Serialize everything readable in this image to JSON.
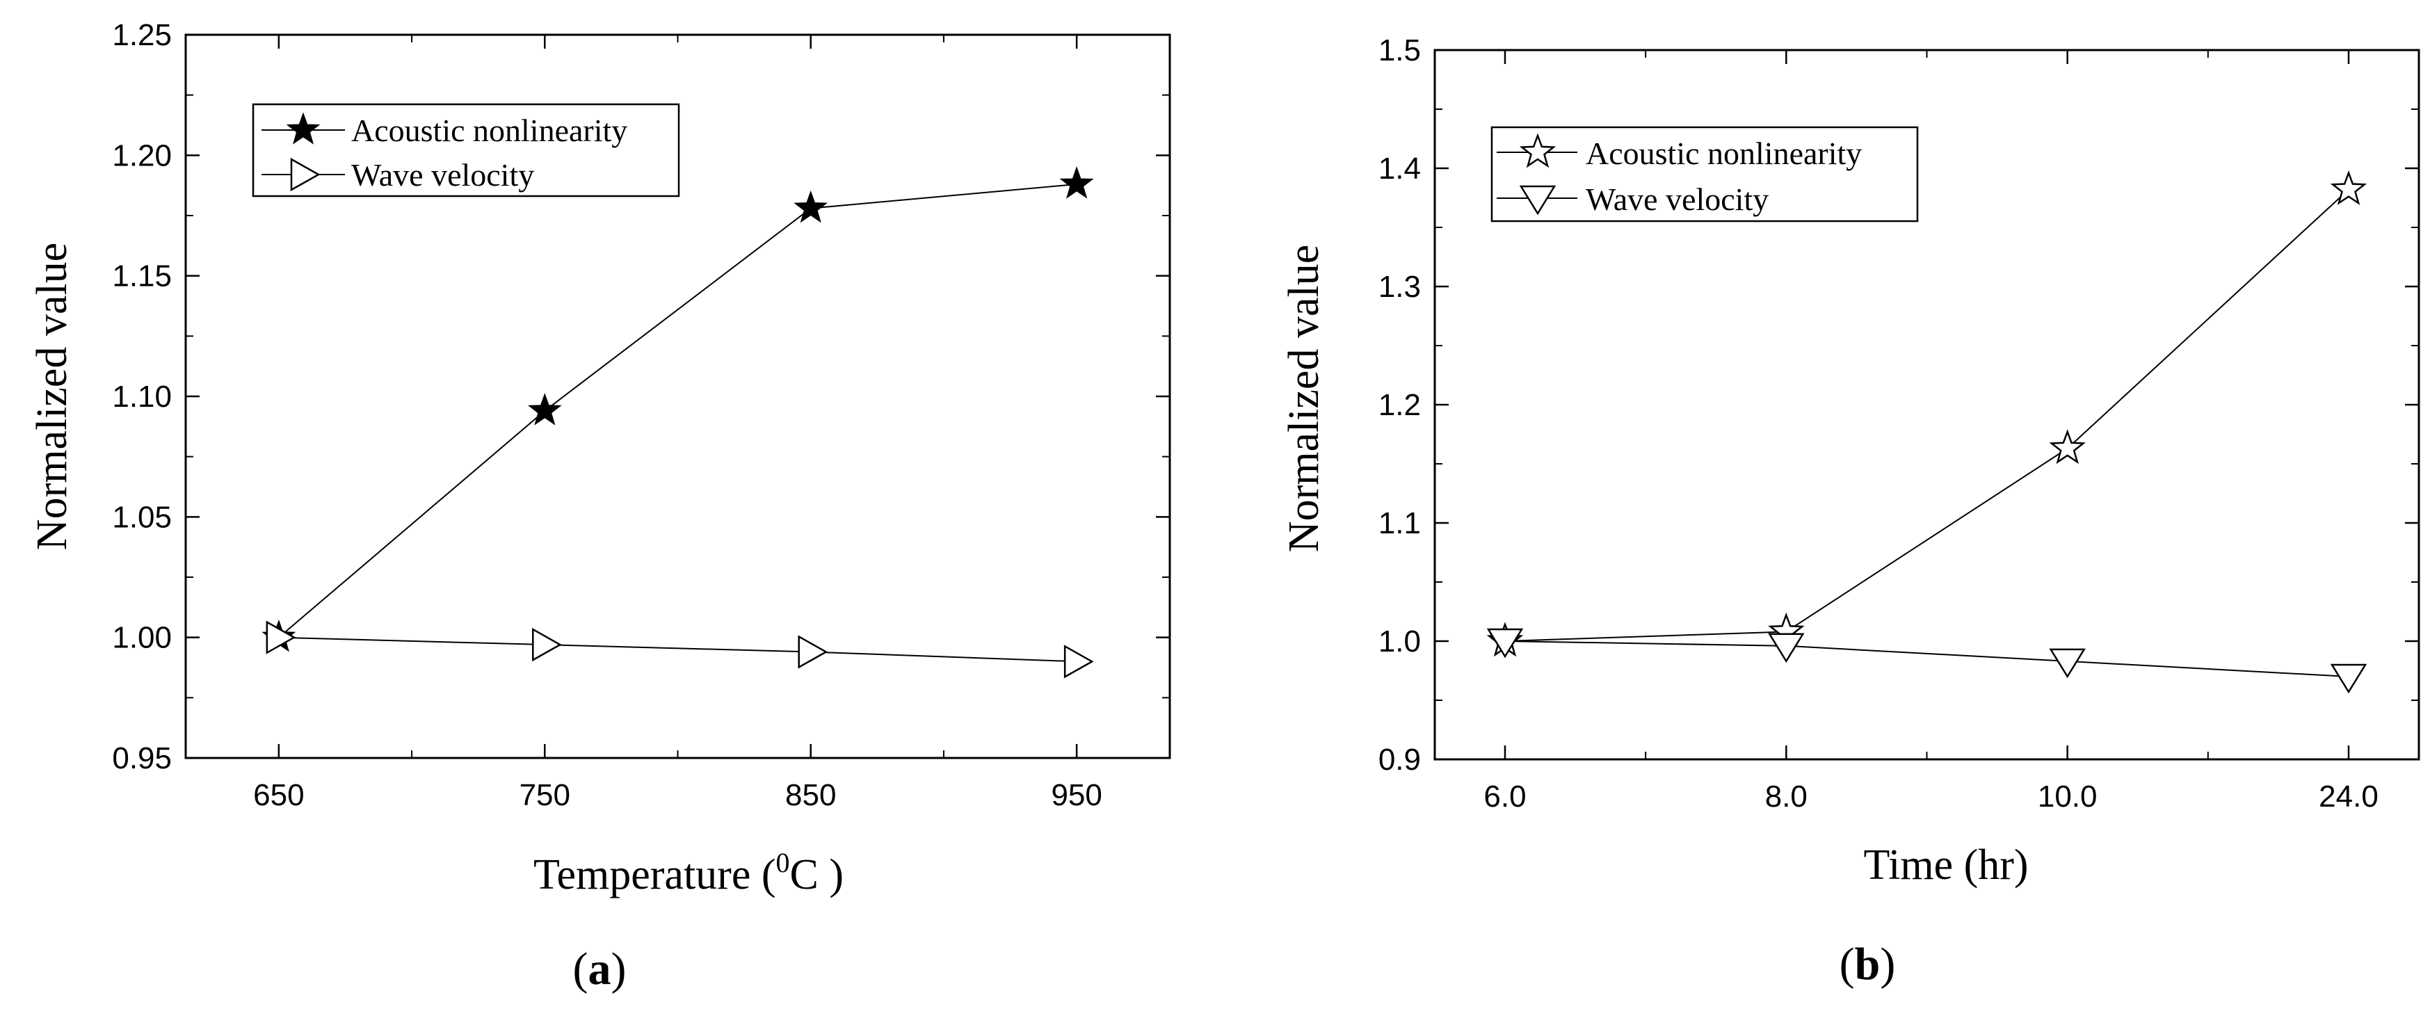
{
  "chart_data": [
    {
      "type": "line",
      "panel_label_prefix": "(",
      "panel_label_letter": "a",
      "panel_label_suffix": ")",
      "xlabel_main": "Temperature (",
      "xlabel_sup": "0",
      "xlabel_unit": "C )",
      "ylabel": "Normalized value",
      "categories": [
        "650",
        "750",
        "850",
        "950"
      ],
      "x": [
        650,
        750,
        850,
        950
      ],
      "xlim": [
        615,
        985
      ],
      "ylim": [
        0.95,
        1.25
      ],
      "yticks": [
        0.95,
        1.0,
        1.05,
        1.1,
        1.15,
        1.2,
        1.25
      ],
      "ytick_labels": [
        "0.95",
        "1.00",
        "1.05",
        "1.10",
        "1.15",
        "1.20",
        "1.25"
      ],
      "legend_position": "top-left",
      "series": [
        {
          "name": "Acoustic nonlinearity",
          "marker": "filled-star",
          "values": [
            1.0,
            1.094,
            1.178,
            1.188
          ]
        },
        {
          "name": "Wave velocity",
          "marker": "right-triangle",
          "values": [
            1.0,
            0.997,
            0.994,
            0.99
          ]
        }
      ]
    },
    {
      "type": "line",
      "panel_label_prefix": "(",
      "panel_label_letter": "b",
      "panel_label_suffix": ")",
      "xlabel": "Time (hr)",
      "ylabel": "Normalized value",
      "categories": [
        "6.0",
        "8.0",
        "10.0",
        "24.0"
      ],
      "ylim": [
        0.9,
        1.5
      ],
      "yticks": [
        0.9,
        1.0,
        1.1,
        1.2,
        1.3,
        1.4,
        1.5
      ],
      "ytick_labels": [
        "0.9",
        "1.0",
        "1.1",
        "1.2",
        "1.3",
        "1.4",
        "1.5"
      ],
      "legend_position": "top-left",
      "series": [
        {
          "name": "Acoustic nonlinearity",
          "marker": "open-star",
          "values": [
            1.0,
            1.008,
            1.163,
            1.382
          ]
        },
        {
          "name": "Wave velocity",
          "marker": "down-triangle",
          "values": [
            1.0,
            0.996,
            0.983,
            0.97
          ]
        }
      ]
    }
  ]
}
